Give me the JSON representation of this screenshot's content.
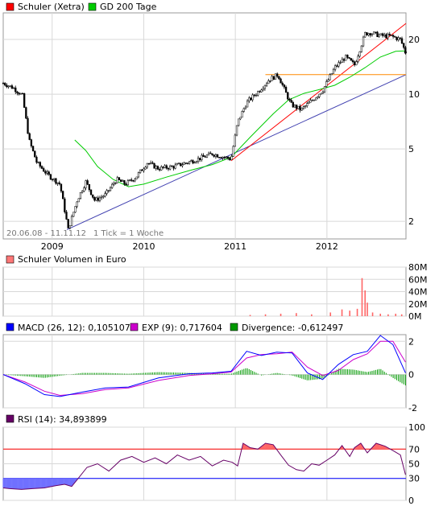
{
  "chart_data": [
    {
      "type": "candlestick",
      "panel": "price",
      "scale": "log",
      "legend": [
        {
          "label": "Schuler (Xetra)",
          "color": "#ff0000"
        },
        {
          "label": "GD 200 Tage",
          "color": "#00cc00"
        }
      ],
      "y_ticks": [
        "2",
        "5",
        "10",
        "20"
      ],
      "y_tick_values": [
        2,
        5,
        10,
        20
      ],
      "ylim": [
        1.6,
        28
      ],
      "x_ticks": [
        "2009",
        "2010",
        "2011",
        "2012"
      ],
      "x_tick_values": [
        "2009-01-01",
        "2010-01-01",
        "2011-01-01",
        "2012-01-01"
      ],
      "xlim": [
        "2008-06-20",
        "2012-11-11"
      ],
      "date_range_label": "20.06.08 - 11.11.12",
      "tick_label": "1 Tick = 1 Woche",
      "price_series": {
        "name": "Schuler (Xetra)",
        "x": [
          "2008-06-20",
          "2008-08-01",
          "2008-09-05",
          "2008-10-01",
          "2008-11-01",
          "2008-12-15",
          "2009-02-01",
          "2009-03-06",
          "2009-04-10",
          "2009-05-15",
          "2009-06-20",
          "2009-08-01",
          "2009-09-15",
          "2009-10-20",
          "2009-12-01",
          "2010-01-15",
          "2010-03-01",
          "2010-05-01",
          "2010-07-15",
          "2010-10-01",
          "2010-12-15",
          "2011-01-10",
          "2011-02-15",
          "2011-04-01",
          "2011-05-15",
          "2011-06-20",
          "2011-08-10",
          "2011-09-20",
          "2011-11-01",
          "2011-12-15",
          "2012-02-01",
          "2012-03-15",
          "2012-04-20",
          "2012-06-01",
          "2012-06-20",
          "2012-08-01",
          "2012-09-15",
          "2012-10-20",
          "2012-11-09"
        ],
        "y": [
          11.5,
          10.8,
          9.8,
          5.6,
          4.2,
          3.6,
          3.2,
          1.8,
          2.6,
          3.3,
          2.6,
          2.8,
          3.4,
          3.2,
          3.5,
          4.2,
          3.9,
          4.0,
          4.3,
          4.7,
          4.4,
          7.0,
          9.0,
          10.3,
          12.0,
          12.8,
          8.8,
          8.2,
          9.2,
          10.5,
          14.0,
          16.0,
          14.5,
          21.5,
          21.8,
          21.0,
          20.8,
          20.0,
          17.0
        ]
      },
      "sma200": {
        "name": "GD 200 Tage",
        "x": [
          "2009-04-01",
          "2009-05-15",
          "2009-07-01",
          "2009-09-01",
          "2009-11-01",
          "2010-01-01",
          "2010-04-01",
          "2010-07-01",
          "2010-10-01",
          "2010-12-15",
          "2011-03-01",
          "2011-06-01",
          "2011-08-01",
          "2011-10-01",
          "2011-12-01",
          "2012-02-01",
          "2012-04-01",
          "2012-06-01",
          "2012-08-01",
          "2012-10-01",
          "2012-11-09"
        ],
        "y": [
          5.6,
          4.9,
          4.0,
          3.4,
          3.1,
          3.2,
          3.5,
          3.8,
          4.1,
          4.5,
          5.8,
          7.8,
          9.3,
          10.1,
          10.6,
          11.2,
          12.4,
          14.0,
          16.0,
          17.2,
          17.3
        ]
      },
      "trendlines": [
        {
          "name": "support line",
          "color": "#4040b0",
          "x": [
            "2009-03-01",
            "2012-11-11"
          ],
          "y": [
            1.8,
            12.8
          ]
        },
        {
          "name": "rising line",
          "color": "#ff0000",
          "x": [
            "2010-12-15",
            "2012-11-11"
          ],
          "y": [
            4.3,
            24.5
          ]
        },
        {
          "name": "horizontal line",
          "color": "#ff8800",
          "x": [
            "2011-05-01",
            "2012-11-11"
          ],
          "y": [
            12.8,
            12.8
          ]
        }
      ]
    },
    {
      "type": "bar",
      "panel": "volume",
      "legend": [
        {
          "label": "Schuler Volumen in Euro",
          "color": "#ff7777"
        }
      ],
      "y_ticks": [
        "80M",
        "60M",
        "40M",
        "20M",
        "0M"
      ],
      "y_tick_values": [
        80,
        60,
        40,
        20,
        0
      ],
      "ylim": [
        0,
        80
      ],
      "x": [
        "2011-03-01",
        "2011-05-01",
        "2011-07-01",
        "2011-09-01",
        "2011-11-01",
        "2012-01-15",
        "2012-03-01",
        "2012-04-01",
        "2012-05-01",
        "2012-05-20",
        "2012-06-01",
        "2012-06-10",
        "2012-07-01",
        "2012-08-01",
        "2012-09-01",
        "2012-10-01",
        "2012-10-25"
      ],
      "values": [
        2,
        3,
        4,
        5,
        3,
        6,
        11,
        9,
        12,
        62,
        42,
        22,
        6,
        4,
        3,
        4,
        3
      ]
    },
    {
      "type": "line",
      "panel": "macd",
      "legend": [
        {
          "label": "MACD (26, 12): 0,105107",
          "color": "#0000ff"
        },
        {
          "label": "EXP (9): 0,717604",
          "color": "#cc00cc"
        },
        {
          "label": "Divergence: -0,612497",
          "color": "#009900"
        }
      ],
      "y_ticks": [
        "2",
        "0",
        "-2"
      ],
      "y_tick_values": [
        2,
        0,
        -2
      ],
      "ylim": [
        -2,
        2.4
      ],
      "macd": {
        "x": [
          "2008-06-20",
          "2008-09-15",
          "2008-12-01",
          "2009-02-01",
          "2009-05-01",
          "2009-08-01",
          "2009-11-01",
          "2010-03-01",
          "2010-07-01",
          "2010-10-01",
          "2010-12-15",
          "2011-02-15",
          "2011-04-15",
          "2011-06-15",
          "2011-08-15",
          "2011-10-15",
          "2011-12-15",
          "2012-02-15",
          "2012-04-15",
          "2012-06-10",
          "2012-08-01",
          "2012-09-20",
          "2012-11-09"
        ],
        "y": [
          0.0,
          -0.55,
          -1.2,
          -1.32,
          -1.05,
          -0.8,
          -0.75,
          -0.2,
          0.05,
          0.1,
          0.2,
          1.4,
          1.15,
          1.35,
          1.3,
          0.1,
          -0.3,
          0.6,
          1.2,
          1.4,
          2.35,
          1.8,
          0.1
        ]
      },
      "signal": {
        "x": [
          "2008-06-20",
          "2008-09-15",
          "2008-12-01",
          "2009-02-01",
          "2009-05-01",
          "2009-08-01",
          "2009-11-01",
          "2010-03-01",
          "2010-07-01",
          "2010-10-01",
          "2010-12-15",
          "2011-02-15",
          "2011-04-15",
          "2011-06-15",
          "2011-08-15",
          "2011-10-15",
          "2011-12-15",
          "2012-02-15",
          "2012-04-15",
          "2012-06-10",
          "2012-08-01",
          "2012-09-20",
          "2012-11-09"
        ],
        "y": [
          0.0,
          -0.45,
          -1.0,
          -1.25,
          -1.15,
          -0.9,
          -0.8,
          -0.35,
          -0.05,
          0.05,
          0.15,
          1.0,
          1.2,
          1.25,
          1.35,
          0.45,
          -0.05,
          0.25,
          0.9,
          1.25,
          2.0,
          2.0,
          0.75
        ]
      }
    },
    {
      "type": "line",
      "panel": "rsi",
      "legend": [
        {
          "label": "RSI (14): 34,893899",
          "color": "#660066"
        }
      ],
      "y_ticks": [
        "100",
        "70",
        "50",
        "30",
        "0"
      ],
      "y_tick_values": [
        100,
        70,
        50,
        30,
        0
      ],
      "ylim": [
        0,
        100
      ],
      "thresholds": [
        {
          "value": 70,
          "color": "#ff0000"
        },
        {
          "value": 30,
          "color": "#0000ff"
        }
      ],
      "x": [
        "2008-06-20",
        "2008-07-15",
        "2008-09-01",
        "2008-10-15",
        "2008-12-01",
        "2009-01-15",
        "2009-02-20",
        "2009-03-20",
        "2009-04-15",
        "2009-05-20",
        "2009-07-01",
        "2009-08-15",
        "2009-10-01",
        "2009-11-15",
        "2010-01-01",
        "2010-02-15",
        "2010-04-01",
        "2010-05-15",
        "2010-07-01",
        "2010-08-15",
        "2010-10-01",
        "2010-11-15",
        "2010-12-20",
        "2011-01-10",
        "2011-02-01",
        "2011-03-01",
        "2011-04-01",
        "2011-05-01",
        "2011-06-01",
        "2011-07-01",
        "2011-08-01",
        "2011-09-01",
        "2011-10-01",
        "2011-11-01",
        "2011-12-01",
        "2012-01-01",
        "2012-02-01",
        "2012-03-01",
        "2012-04-01",
        "2012-04-20",
        "2012-05-15",
        "2012-06-10",
        "2012-07-15",
        "2012-08-20",
        "2012-09-20",
        "2012-10-20",
        "2012-11-09"
      ],
      "values": [
        17,
        16,
        15,
        16,
        17,
        20,
        22,
        19,
        30,
        45,
        50,
        40,
        55,
        60,
        52,
        58,
        50,
        62,
        55,
        60,
        47,
        55,
        52,
        47,
        78,
        72,
        70,
        78,
        76,
        62,
        48,
        42,
        40,
        50,
        48,
        55,
        62,
        75,
        60,
        72,
        78,
        65,
        78,
        74,
        68,
        62,
        35
      ]
    }
  ]
}
